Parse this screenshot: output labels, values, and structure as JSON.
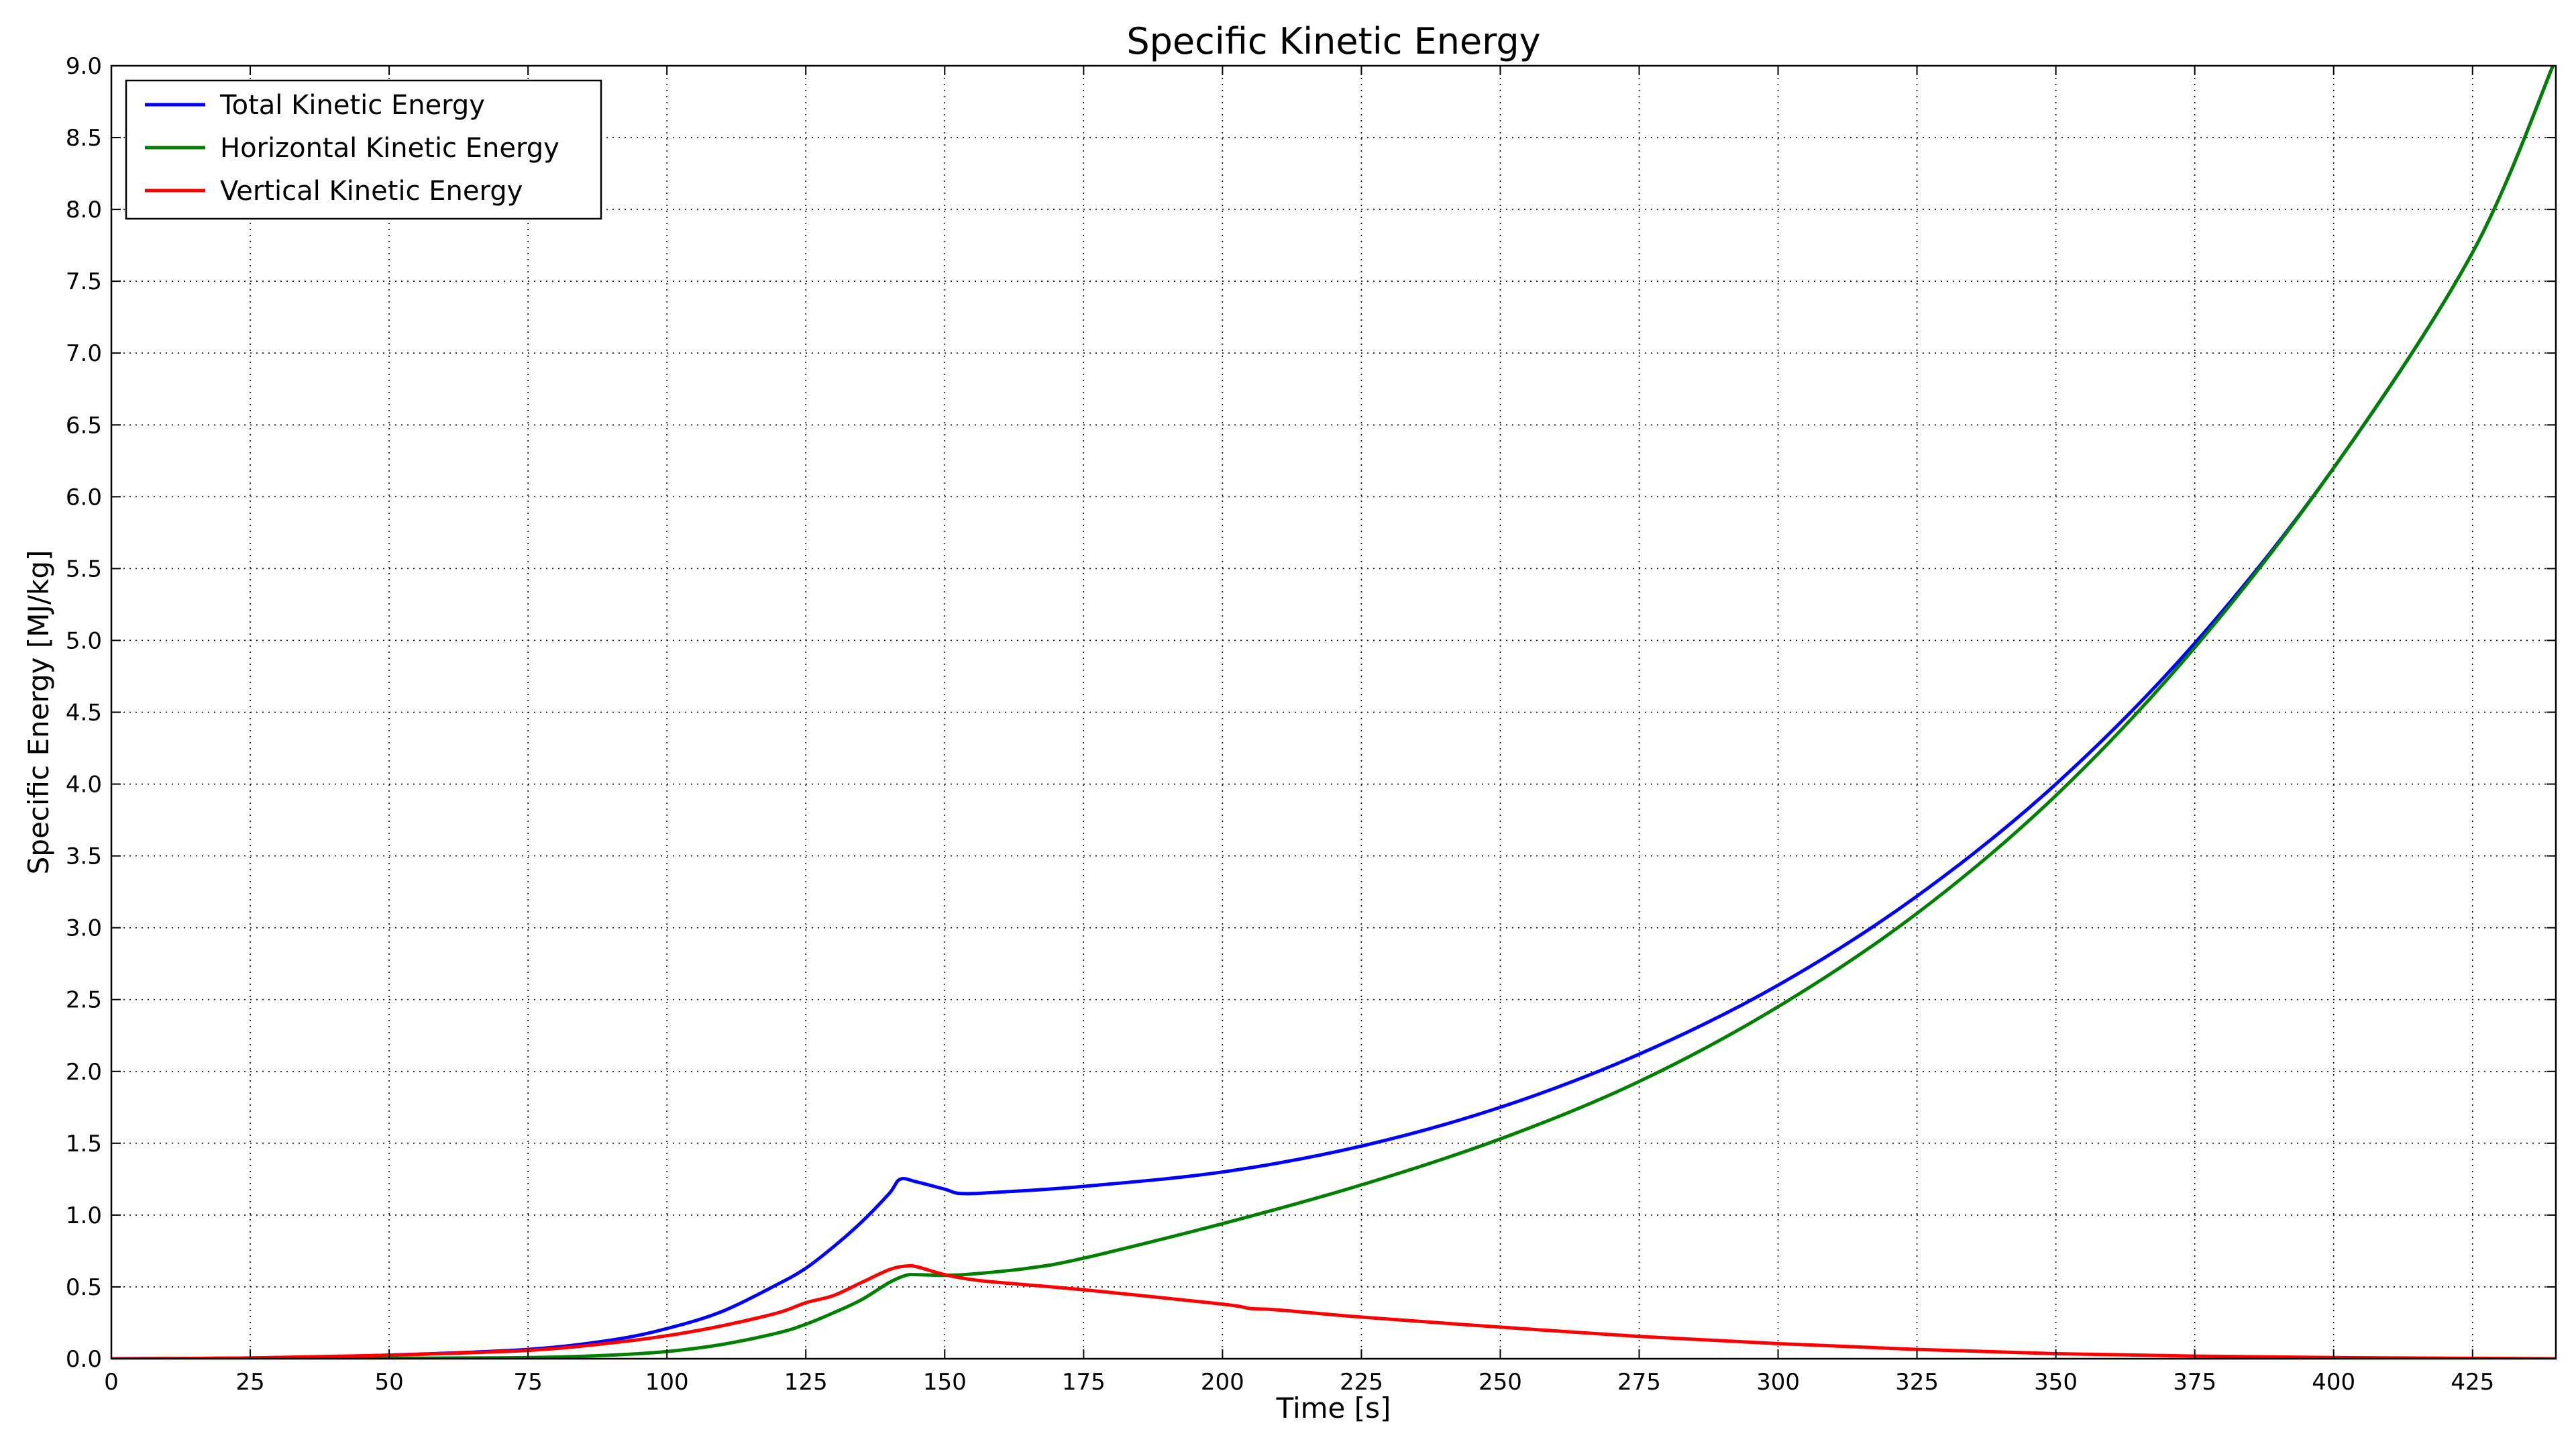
{
  "chart_data": {
    "type": "line",
    "title": "Specific Kinetic Energy",
    "xlabel": "Time [s]",
    "ylabel": "Specific Energy [MJ/kg]",
    "xlim": [
      0,
      440
    ],
    "ylim": [
      0,
      9.0
    ],
    "xticks": [
      0,
      25,
      50,
      75,
      100,
      125,
      150,
      175,
      200,
      225,
      250,
      275,
      300,
      325,
      350,
      375,
      400,
      425
    ],
    "xtick_labels": [
      "0",
      "25",
      "50",
      "75",
      "100",
      "125",
      "150",
      "175",
      "200",
      "225",
      "250",
      "275",
      "300",
      "325",
      "350",
      "375",
      "400",
      "425"
    ],
    "yticks": [
      0.0,
      0.5,
      1.0,
      1.5,
      2.0,
      2.5,
      3.0,
      3.5,
      4.0,
      4.5,
      5.0,
      5.5,
      6.0,
      6.5,
      7.0,
      7.5,
      8.0,
      8.5,
      9.0
    ],
    "ytick_labels": [
      "0.0",
      "0.5",
      "1.0",
      "1.5",
      "2.0",
      "2.5",
      "3.0",
      "3.5",
      "4.0",
      "4.5",
      "5.0",
      "5.5",
      "6.0",
      "6.5",
      "7.0",
      "7.5",
      "8.0",
      "8.5",
      "9.0"
    ],
    "grid": true,
    "legend_position": "top-left",
    "series": [
      {
        "name": "Total Kinetic Energy",
        "color": "#0000ff",
        "x": [
          0,
          25,
          50,
          75,
          90,
          100,
          110,
          120,
          125,
          130,
          135,
          140,
          142,
          145,
          150,
          153,
          160,
          175,
          200,
          225,
          250,
          275,
          300,
          325,
          350,
          375,
          400,
          425,
          440
        ],
        "y": [
          0.0,
          0.005,
          0.025,
          0.065,
          0.13,
          0.21,
          0.33,
          0.52,
          0.63,
          0.78,
          0.95,
          1.15,
          1.25,
          1.23,
          1.18,
          1.15,
          1.16,
          1.2,
          1.3,
          1.48,
          1.75,
          2.12,
          2.6,
          3.22,
          4.0,
          4.98,
          6.2,
          7.7,
          9.05
        ]
      },
      {
        "name": "Horizontal Kinetic Energy",
        "color": "#008000",
        "x": [
          0,
          50,
          75,
          90,
          100,
          110,
          120,
          125,
          130,
          135,
          140,
          143,
          145,
          150,
          155,
          165,
          175,
          200,
          225,
          250,
          275,
          300,
          325,
          350,
          375,
          400,
          425,
          440
        ],
        "y": [
          0.0,
          0.003,
          0.008,
          0.025,
          0.05,
          0.1,
          0.18,
          0.24,
          0.32,
          0.41,
          0.53,
          0.58,
          0.585,
          0.58,
          0.59,
          0.63,
          0.7,
          0.94,
          1.21,
          1.53,
          1.93,
          2.45,
          3.1,
          3.92,
          4.95,
          6.2,
          7.7,
          9.05
        ]
      },
      {
        "name": "Vertical Kinetic Energy",
        "color": "#ff0000",
        "x": [
          0,
          25,
          50,
          75,
          90,
          100,
          110,
          120,
          125,
          130,
          135,
          140,
          143,
          145,
          150,
          155,
          160,
          175,
          200,
          205,
          210,
          225,
          250,
          275,
          300,
          325,
          350,
          375,
          400,
          425,
          440
        ],
        "y": [
          0.0,
          0.005,
          0.025,
          0.058,
          0.11,
          0.16,
          0.23,
          0.32,
          0.39,
          0.44,
          0.53,
          0.62,
          0.645,
          0.64,
          0.585,
          0.55,
          0.53,
          0.48,
          0.38,
          0.35,
          0.34,
          0.29,
          0.22,
          0.155,
          0.105,
          0.065,
          0.035,
          0.018,
          0.008,
          0.003,
          0.0
        ]
      }
    ]
  }
}
